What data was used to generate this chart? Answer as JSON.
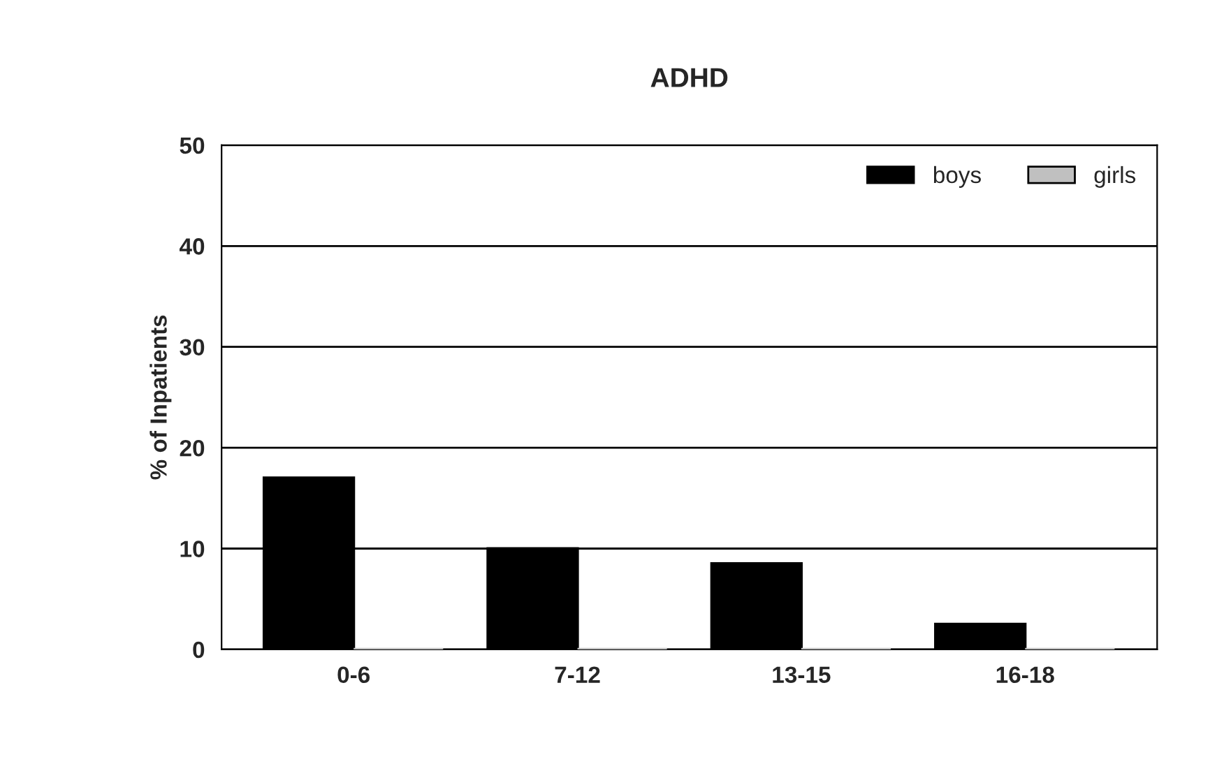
{
  "chart_data": {
    "type": "bar",
    "title": "ADHD",
    "ylabel": "% of Inpatients",
    "categories": [
      "0-6",
      "7-12",
      "13-15",
      "16-18"
    ],
    "series": [
      {
        "name": "boys",
        "color": "#000000",
        "values": [
          17,
          10,
          8.5,
          2.5
        ]
      },
      {
        "name": "girls",
        "color": "#c0c0c0",
        "values": [
          0,
          0,
          0,
          0
        ]
      }
    ],
    "ylim": [
      0,
      50
    ],
    "yticks": [
      0,
      10,
      20,
      30,
      40,
      50
    ],
    "grid": "y",
    "legend": "top right"
  }
}
